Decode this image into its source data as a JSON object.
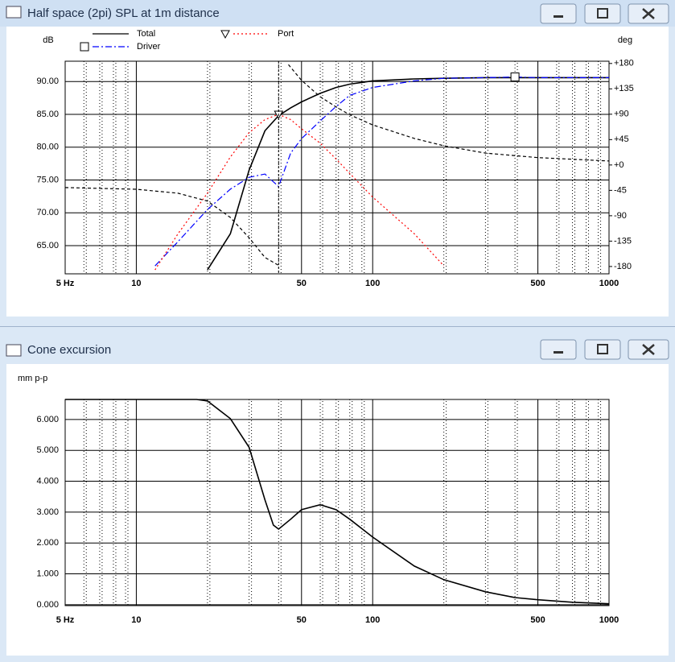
{
  "chart_data": [
    {
      "type": "line",
      "title": "Half space (2pi) SPL at 1m distance",
      "ylabel": "dB",
      "y2label": "deg",
      "log_x": true,
      "grid": true,
      "xlim": [
        5,
        1000
      ],
      "xticks": [
        {
          "value": 5,
          "label": "5 Hz"
        },
        10,
        50,
        100,
        500,
        1000
      ],
      "ylim": [
        60.7,
        93.1
      ],
      "yticks": [
        {
          "value": 65,
          "label": "65.00"
        },
        {
          "value": 70,
          "label": "70.00"
        },
        {
          "value": 75,
          "label": "75.00"
        },
        {
          "value": 80,
          "label": "80.00"
        },
        {
          "value": 85,
          "label": "85.00"
        },
        {
          "value": 90,
          "label": "90.00"
        }
      ],
      "y2lim": [
        -193,
        184
      ],
      "y2ticks": [
        {
          "value": 180,
          "label": "+180"
        },
        {
          "value": 135,
          "label": "+135"
        },
        {
          "value": 90,
          "label": "+90"
        },
        {
          "value": 45,
          "label": "+45"
        },
        {
          "value": 0,
          "label": "+0"
        },
        -45,
        -90,
        -135,
        -180
      ],
      "series": [
        {
          "name": "Total",
          "color": "#000000",
          "dash": "solid",
          "x": [
            20,
            25,
            30,
            35,
            40,
            45,
            50,
            60,
            70,
            80,
            100,
            150,
            200,
            300,
            400,
            500,
            700,
            1000
          ],
          "values": [
            61.3,
            66.8,
            76.5,
            82.5,
            84.8,
            86.0,
            86.9,
            88.2,
            89.1,
            89.6,
            90.1,
            90.4,
            90.5,
            90.6,
            90.6,
            90.6,
            90.6,
            90.6
          ]
        },
        {
          "name": "Driver",
          "color": "#0000ff",
          "dash": "dashdot",
          "marker": "square",
          "x": [
            12,
            15,
            20,
            25,
            30,
            35,
            40,
            45,
            50,
            60,
            70,
            80,
            100,
            150,
            200,
            300,
            400,
            500,
            700,
            1000
          ],
          "values": [
            61.9,
            65.6,
            70.5,
            73.6,
            75.4,
            75.9,
            74.0,
            79.1,
            81.3,
            84.0,
            86.2,
            87.9,
            89.1,
            90.1,
            90.5,
            90.6,
            90.7,
            90.6,
            90.6,
            90.6
          ]
        },
        {
          "name": "Port",
          "color": "#ff0000",
          "dash": "dotted",
          "marker": "triangle",
          "x": [
            12,
            15,
            20,
            25,
            30,
            35,
            40,
            45,
            50,
            60,
            70,
            80,
            100,
            150,
            200
          ],
          "values": [
            61.3,
            66.8,
            73.0,
            78.5,
            82.2,
            84.2,
            85.0,
            84.2,
            82.8,
            80.6,
            78.2,
            76.0,
            72.4,
            66.8,
            61.9
          ]
        },
        {
          "color": "#000000",
          "dash": "dashed",
          "axis": "y2",
          "x": [
            5,
            10,
            15,
            20,
            25,
            30,
            35,
            40,
            42,
            44,
            50,
            60,
            70,
            80,
            100,
            150,
            200,
            300,
            500,
            1000
          ],
          "values": [
            -40,
            -43,
            -50,
            -64,
            -93,
            -129,
            -164,
            -178,
            null,
            178,
            150,
            121,
            103,
            89,
            71,
            47,
            34,
            21,
            13,
            7
          ]
        }
      ]
    },
    {
      "type": "line",
      "title": "Cone excursion",
      "ylabel": "mm p-p",
      "log_x": true,
      "grid": true,
      "xlim": [
        5,
        1000
      ],
      "xticks": [
        {
          "value": 5,
          "label": "5 Hz"
        },
        10,
        50,
        100,
        500,
        1000
      ],
      "ylim": [
        -0.03,
        6.65
      ],
      "yticks": [
        {
          "value": 0,
          "label": "0.000"
        },
        {
          "value": 1,
          "label": "1.000"
        },
        {
          "value": 2,
          "label": "2.000"
        },
        {
          "value": 3,
          "label": "3.000"
        },
        {
          "value": 4,
          "label": "4.000"
        },
        {
          "value": 5,
          "label": "5.000"
        },
        {
          "value": 6,
          "label": "6.000"
        }
      ],
      "series": [
        {
          "color": "#000000",
          "dash": "solid",
          "x": [
            5,
            10,
            15,
            18,
            20,
            25,
            30,
            35,
            38,
            40,
            45,
            50,
            60,
            70,
            80,
            100,
            150,
            200,
            300,
            400,
            500,
            700,
            1000
          ],
          "values": [
            6.65,
            6.65,
            6.65,
            6.65,
            6.6,
            6.03,
            5.1,
            3.4,
            2.58,
            2.45,
            2.77,
            3.08,
            3.24,
            3.08,
            2.77,
            2.19,
            1.25,
            0.81,
            0.42,
            0.23,
            0.16,
            0.08,
            0.03
          ]
        }
      ]
    }
  ]
}
